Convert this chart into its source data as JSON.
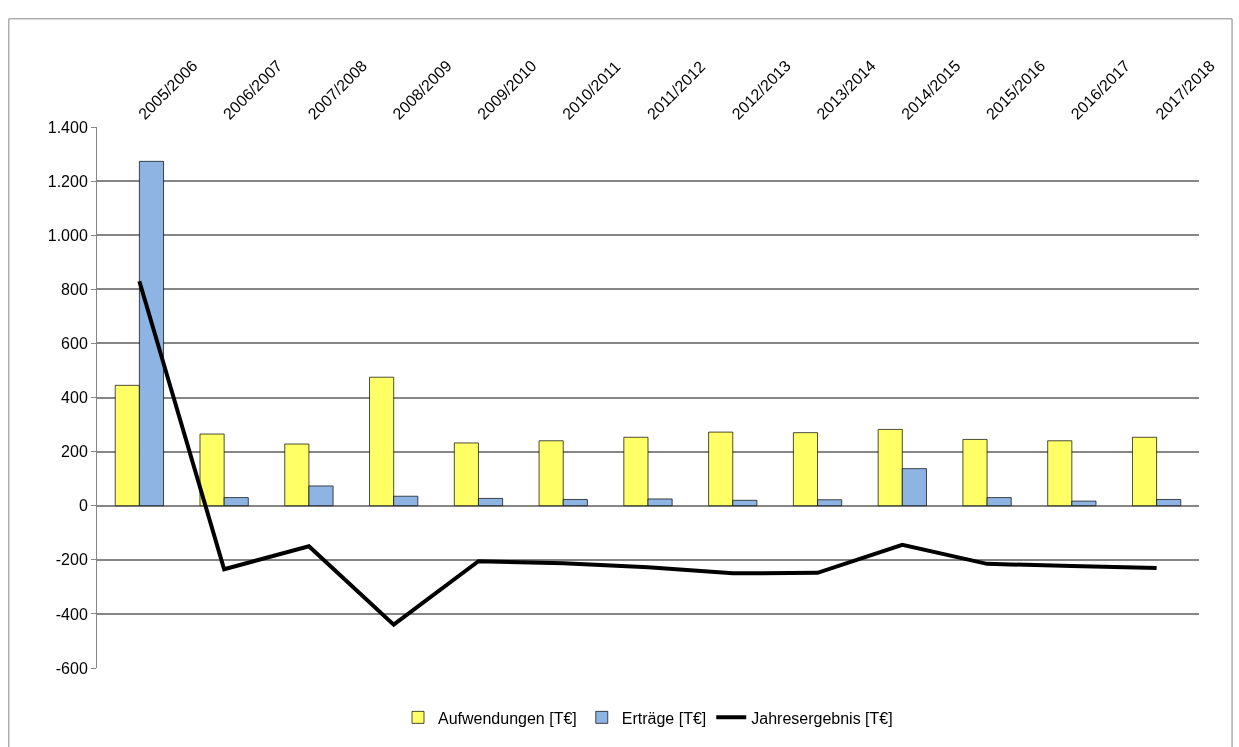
{
  "chart_data": {
    "type": "bar",
    "categories": [
      "2005/2006",
      "2006/2007",
      "2007/2008",
      "2008/2009",
      "2009/2010",
      "2010/2011",
      "2011/2012",
      "2012/2013",
      "2013/2014",
      "2014/2015",
      "2015/2016",
      "2016/2017",
      "2017/2018"
    ],
    "series": [
      {
        "name": "Aufwendungen [T€]",
        "color": "#ffff66",
        "values": [
          445,
          265,
          228,
          475,
          232,
          240,
          253,
          272,
          270,
          282,
          245,
          240,
          253
        ]
      },
      {
        "name": "Erträge [T€]",
        "color": "#8db4e2",
        "values": [
          1273,
          30,
          73,
          35,
          27,
          23,
          25,
          20,
          22,
          137,
          30,
          17,
          23
        ]
      },
      {
        "name": "Jahresergebnis [T€]",
        "type": "line",
        "color": "#000000",
        "values": [
          830,
          -235,
          -150,
          -440,
          -205,
          -213,
          -228,
          -250,
          -248,
          -145,
          -215,
          -223,
          -230
        ]
      }
    ],
    "ylim": [
      -600,
      1400
    ],
    "yticks": [
      {
        "value": -600,
        "label": "-600"
      },
      {
        "value": -400,
        "label": "-400"
      },
      {
        "value": -200,
        "label": "-200"
      },
      0,
      200,
      400,
      600,
      800,
      {
        "value": 1000,
        "label": "1.000"
      },
      {
        "value": 1200,
        "label": "1.200"
      },
      {
        "value": 1400,
        "label": "1.400"
      }
    ],
    "grid": "y",
    "legend": "bottom",
    "marker": "none",
    "line_style": "solid"
  }
}
